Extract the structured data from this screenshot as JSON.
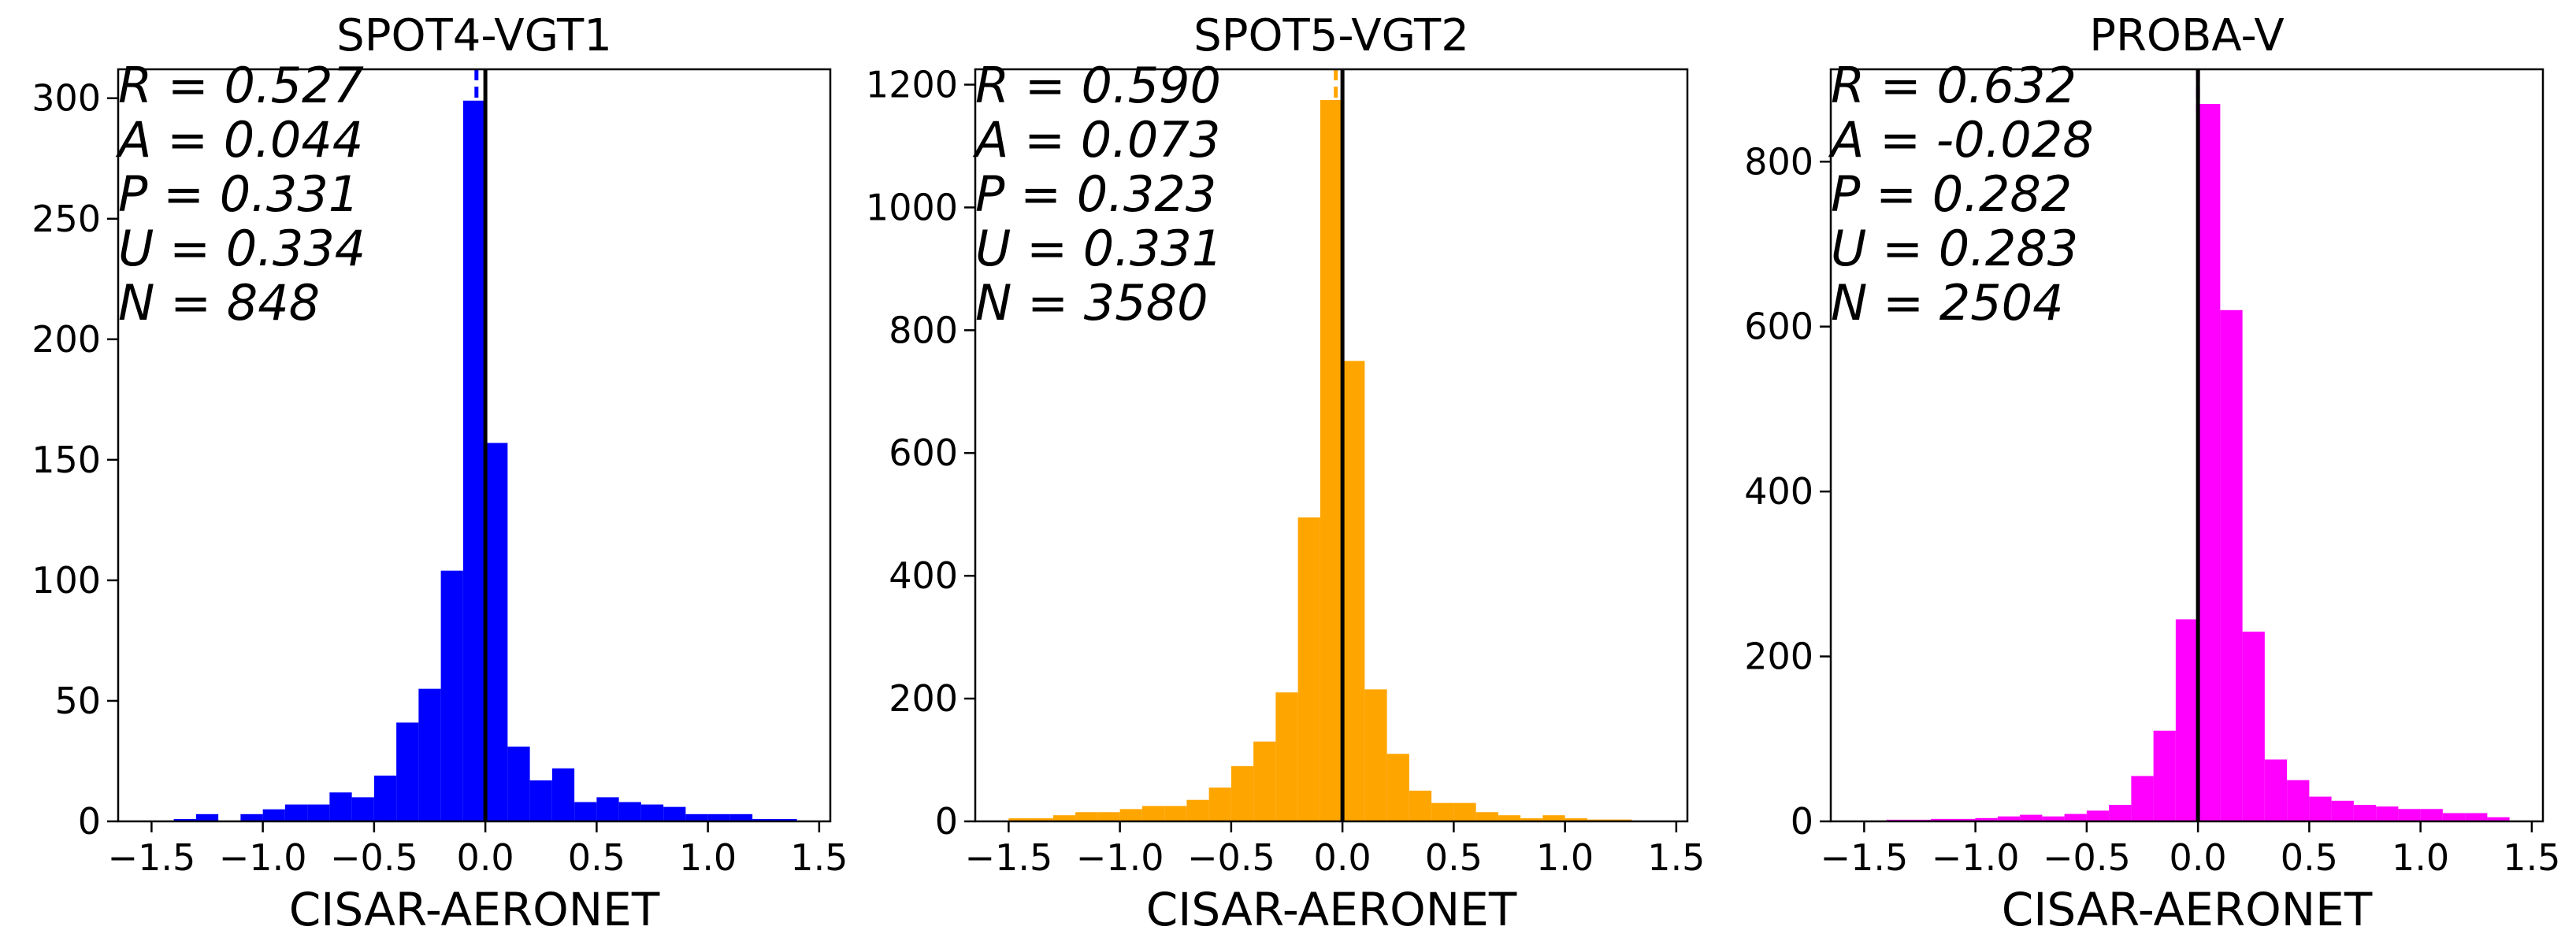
{
  "chart_data": [
    {
      "type": "bar",
      "title": "SPOT4-VGT1",
      "xlabel": "CISAR-AERONET",
      "ylabel": "",
      "color": "#0000ff",
      "xlim": [
        -1.65,
        1.55
      ],
      "ylim": [
        0,
        312
      ],
      "xticks": [
        -1.5,
        -1.0,
        -0.5,
        0.0,
        0.5,
        1.0,
        1.5
      ],
      "xtick_labels": [
        "−1.5",
        "−1.0",
        "−0.5",
        "0.0",
        "0.5",
        "1.0",
        "1.5"
      ],
      "yticks": [
        0,
        50,
        100,
        150,
        200,
        250,
        300
      ],
      "ytick_labels": [
        "0",
        "50",
        "100",
        "150",
        "200",
        "250",
        "300"
      ],
      "bin_width": 0.1,
      "bin_starts": [
        -1.4,
        -1.3,
        -1.2,
        -1.1,
        -1.0,
        -0.9,
        -0.8,
        -0.7,
        -0.6,
        -0.5,
        -0.4,
        -0.3,
        -0.2,
        -0.1,
        0.0,
        0.1,
        0.2,
        0.3,
        0.4,
        0.5,
        0.6,
        0.7,
        0.8,
        0.9,
        1.0,
        1.1,
        1.2,
        1.3
      ],
      "values": [
        1,
        3,
        0,
        3,
        5,
        7,
        7,
        12,
        10,
        19,
        41,
        55,
        104,
        299,
        157,
        31,
        17,
        22,
        8,
        10,
        8,
        7,
        6,
        3,
        3,
        3,
        1,
        1
      ],
      "reference_line": 0.0,
      "mean_line": -0.04,
      "stats": [
        "R = 0.527",
        "A = 0.044",
        "P = 0.331",
        "U = 0.334",
        "N = 848"
      ]
    },
    {
      "type": "bar",
      "title": "SPOT5-VGT2",
      "xlabel": "CISAR-AERONET",
      "ylabel": "",
      "color": "#ffa500",
      "xlim": [
        -1.65,
        1.55
      ],
      "ylim": [
        0,
        1225
      ],
      "xticks": [
        -1.5,
        -1.0,
        -0.5,
        0.0,
        0.5,
        1.0,
        1.5
      ],
      "xtick_labels": [
        "−1.5",
        "−1.0",
        "−0.5",
        "0.0",
        "0.5",
        "1.0",
        "1.5"
      ],
      "yticks": [
        0,
        200,
        400,
        600,
        800,
        1000,
        1200
      ],
      "ytick_labels": [
        "0",
        "200",
        "400",
        "600",
        "800",
        "1000",
        "1200"
      ],
      "bin_width": 0.1,
      "bin_starts": [
        -1.5,
        -1.4,
        -1.3,
        -1.2,
        -1.1,
        -1.0,
        -0.9,
        -0.8,
        -0.7,
        -0.6,
        -0.5,
        -0.4,
        -0.3,
        -0.2,
        -0.1,
        0.0,
        0.1,
        0.2,
        0.3,
        0.4,
        0.5,
        0.6,
        0.7,
        0.8,
        0.9,
        1.0,
        1.1,
        1.2
      ],
      "values": [
        5,
        5,
        10,
        15,
        15,
        20,
        25,
        25,
        35,
        55,
        90,
        130,
        210,
        495,
        1175,
        750,
        215,
        110,
        50,
        30,
        30,
        15,
        10,
        5,
        10,
        5,
        3,
        3
      ],
      "reference_line": 0.0,
      "mean_line": -0.03,
      "stats": [
        "R = 0.590",
        "A = 0.073",
        "P = 0.323",
        "U = 0.331",
        "N = 3580"
      ]
    },
    {
      "type": "bar",
      "title": "PROBA-V",
      "xlabel": "CISAR-AERONET",
      "ylabel": "",
      "color": "#ff00ff",
      "xlim": [
        -1.65,
        1.55
      ],
      "ylim": [
        0,
        912
      ],
      "xticks": [
        -1.5,
        -1.0,
        -0.5,
        0.0,
        0.5,
        1.0,
        1.5
      ],
      "xtick_labels": [
        "−1.5",
        "−1.0",
        "−0.5",
        "0.0",
        "0.5",
        "1.0",
        "1.5"
      ],
      "yticks": [
        0,
        200,
        400,
        600,
        800
      ],
      "ytick_labels": [
        "0",
        "200",
        "400",
        "600",
        "800"
      ],
      "bin_width": 0.1,
      "bin_starts": [
        -1.4,
        -1.3,
        -1.2,
        -1.1,
        -1.0,
        -0.9,
        -0.8,
        -0.7,
        -0.6,
        -0.5,
        -0.4,
        -0.3,
        -0.2,
        -0.1,
        0.0,
        0.1,
        0.2,
        0.3,
        0.4,
        0.5,
        0.6,
        0.7,
        0.8,
        0.9,
        1.0,
        1.1,
        1.2,
        1.3
      ],
      "values": [
        2,
        2,
        3,
        3,
        4,
        6,
        8,
        6,
        9,
        13,
        20,
        55,
        110,
        245,
        870,
        620,
        230,
        75,
        50,
        30,
        25,
        20,
        18,
        15,
        15,
        10,
        10,
        5
      ],
      "reference_line": 0.0,
      "mean_line": 0.0,
      "stats": [
        "R = 0.632",
        "A = -0.028",
        "P = 0.282",
        "U = 0.283",
        "N = 2504"
      ]
    }
  ]
}
